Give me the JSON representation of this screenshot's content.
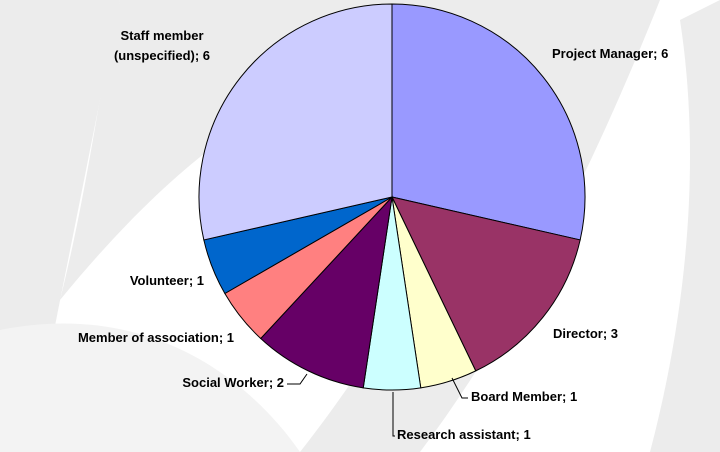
{
  "chart_data": {
    "type": "pie",
    "values": [
      6,
      3,
      1,
      1,
      2,
      1,
      1,
      6
    ],
    "value_labels": [
      "Project Manager; 6",
      "Director; 3",
      "Board Member; 1",
      "Research assistant; 1",
      "Social Worker; 2",
      "Member of association; 1",
      "Volunteer; 1",
      "Staff member\n(unspecified); 6"
    ],
    "colors": [
      "#9999ff",
      "#993366",
      "#ffffcc",
      "#ccffff",
      "#660066",
      "#ff8080",
      "#0066cc",
      "#ccccff"
    ]
  }
}
